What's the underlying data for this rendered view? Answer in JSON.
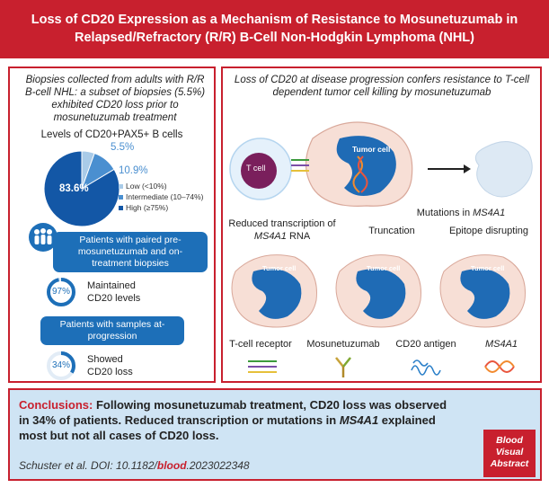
{
  "header": {
    "line1": "Loss of CD20 Expression as a Mechanism of Resistance to Mosunetuzumab in",
    "line2": "Relapsed/Refractory (R/R) B-Cell Non-Hodgkin Lymphoma (NHL)"
  },
  "left": {
    "intro": "Biopsies collected from adults with R/R B-cell NHL: a subset of biopsies (5.5%) exhibited CD20 loss prior to mosunetuzumab treatment",
    "levels_title": "Levels of CD20+PAX5+ B cells",
    "chart_data": {
      "type": "pie",
      "title": "Levels of CD20+PAX5+ B cells",
      "categories": [
        "Low (<10%)",
        "Intermediate (10–74%)",
        "High (≥75%)"
      ],
      "values": [
        5.5,
        10.9,
        83.6
      ],
      "labels": [
        "5.5%",
        "10.9%",
        "83.6%"
      ],
      "colors": [
        "#a9cbe8",
        "#4a8fd0",
        "#1357a6"
      ]
    },
    "pill1": "Patients with paired pre-mosunetuzumab and on-treatment biopsies",
    "ring1": {
      "value": 97,
      "label_value": "97%",
      "text1": "Maintained",
      "text2": "CD20 levels"
    },
    "pill2": "Patients with samples at-progression",
    "ring2": {
      "value": 34,
      "label_value": "34%",
      "text1": "Showed",
      "text2": "CD20 loss"
    }
  },
  "right": {
    "intro": "Loss of CD20 at disease progression confers resistance to T-cell dependent tumor cell killing by mosunetuzumab",
    "tcell_label": "T cell",
    "tumor_label": "Tumor cell",
    "reduced_line1": "Reduced transcription of",
    "reduced_gene": "MS4A1",
    "reduced_suffix": " RNA",
    "mutations_prefix": "Mutations in ",
    "mutations_gene": "MS4A1",
    "truncation": "Truncation",
    "epitope": "Epitope disrupting",
    "legend": {
      "tcr": "T-cell receptor",
      "mosun": "Mosunetuzumab",
      "cd20": "CD20 antigen",
      "gene": "MS4A1"
    }
  },
  "conclusions": {
    "label": "Conclusions:",
    "text_a": " Following mosunetuzumab treatment, CD20 loss was observed in 34% of patients. Reduced transcription or mutations in ",
    "gene": "MS4A1",
    "text_b": " explained most but not all cases of CD20 loss.",
    "citation_a": "Schuster et al. DOI: 10.1182/",
    "citation_journal": "blood",
    "citation_b": ".2023022348",
    "badge1": "Blood",
    "badge2": "Visual",
    "badge3": "Abstract"
  }
}
